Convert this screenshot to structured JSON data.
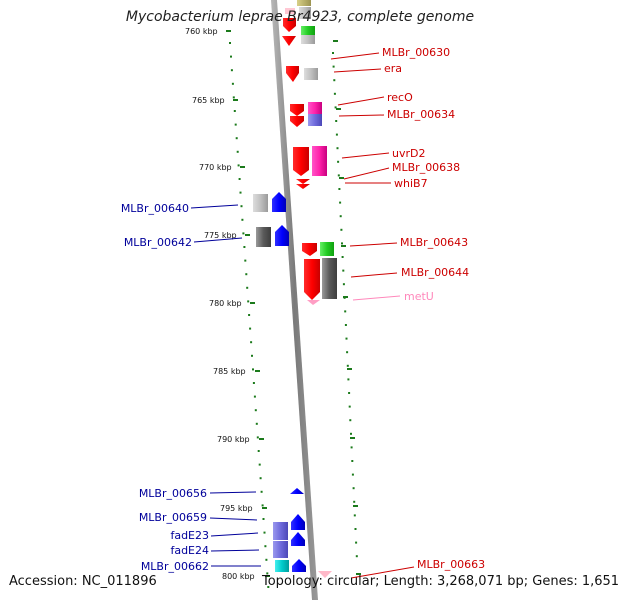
{
  "title": "Mycobacterium leprae Br4923, complete genome",
  "footer": {
    "accession": "Accession: NC_011896",
    "topology": "Topology: circular; Length: 3,268,071 bp; Genes: 1,651"
  },
  "colors": {
    "forward_label": "#cc0000",
    "reverse_label": "#00009a",
    "trna_label": "#ff88bb",
    "scale": "#1b7a1b"
  },
  "scale_labels": [
    "760 kbp",
    "765 kbp",
    "770 kbp",
    "775 kbp",
    "780 kbp",
    "785 kbp",
    "790 kbp",
    "795 kbp",
    "800 kbp"
  ],
  "genes_right": [
    "MLBr_00630",
    "era",
    "recO",
    "MLBr_00634",
    "uvrD2",
    "MLBr_00638",
    "whiB7",
    "MLBr_00643",
    "MLBr_00644",
    "metU",
    "MLBr_00663"
  ],
  "genes_left": [
    "MLBr_00640",
    "MLBr_00642",
    "MLBr_00656",
    "MLBr_00659",
    "fadE23",
    "fadE24",
    "MLBr_00662"
  ]
}
